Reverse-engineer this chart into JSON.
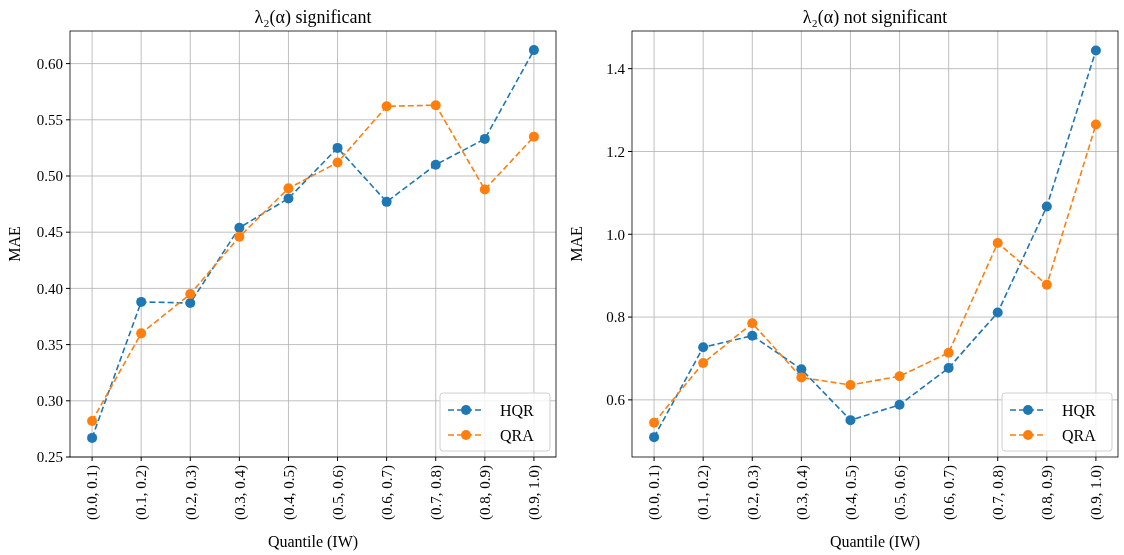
{
  "chart_data": [
    {
      "type": "line",
      "title": "λ₂(α) significant",
      "xlabel": "Quantile (IW)",
      "ylabel": "MAE",
      "categories": [
        "(0.0, 0.1)",
        "(0.1, 0.2)",
        "(0.2, 0.3)",
        "(0.3, 0.4)",
        "(0.4, 0.5)",
        "(0.5, 0.6)",
        "(0.6, 0.7)",
        "(0.7, 0.8)",
        "(0.8, 0.9)",
        "(0.9, 1.0)"
      ],
      "series": [
        {
          "name": "HQR",
          "color": "#1f77b4",
          "values": [
            0.267,
            0.388,
            0.387,
            0.454,
            0.48,
            0.525,
            0.477,
            0.51,
            0.533,
            0.612
          ]
        },
        {
          "name": "QRA",
          "color": "#ff7f0e",
          "values": [
            0.282,
            0.36,
            0.395,
            0.446,
            0.489,
            0.512,
            0.562,
            0.563,
            0.488,
            0.535
          ]
        }
      ],
      "ylim": [
        0.25,
        0.629
      ],
      "yticks": [
        {
          "value": 0.25,
          "label": "0.25"
        },
        {
          "value": 0.3,
          "label": "0.30"
        },
        {
          "value": 0.35,
          "label": "0.35"
        },
        {
          "value": 0.4,
          "label": "0.40"
        },
        {
          "value": 0.45,
          "label": "0.45"
        },
        {
          "value": 0.5,
          "label": "0.50"
        },
        {
          "value": 0.55,
          "label": "0.55"
        },
        {
          "value": 0.6,
          "label": "0.60"
        }
      ],
      "grid": true,
      "legend": "bottom right",
      "marker": "circle",
      "line_style": "dashed"
    },
    {
      "type": "line",
      "title": "λ₂(α) not significant",
      "xlabel": "Quantile (IW)",
      "ylabel": "MAE",
      "categories": [
        "(0.0, 0.1)",
        "(0.1, 0.2)",
        "(0.2, 0.3)",
        "(0.3, 0.4)",
        "(0.4, 0.5)",
        "(0.5, 0.6)",
        "(0.6, 0.7)",
        "(0.7, 0.8)",
        "(0.8, 0.9)",
        "(0.9, 1.0)"
      ],
      "series": [
        {
          "name": "HQR",
          "color": "#1f77b4",
          "values": [
            0.51,
            0.727,
            0.755,
            0.674,
            0.551,
            0.588,
            0.677,
            0.811,
            1.067,
            1.444
          ]
        },
        {
          "name": "QRA",
          "color": "#ff7f0e",
          "values": [
            0.545,
            0.689,
            0.785,
            0.654,
            0.636,
            0.657,
            0.714,
            0.979,
            0.878,
            1.265
          ]
        }
      ],
      "ylim": [
        0.462,
        1.491
      ],
      "yticks": [
        {
          "value": 0.6,
          "label": "0.6"
        },
        {
          "value": 0.8,
          "label": "0.8"
        },
        {
          "value": 1.0,
          "label": "1.0"
        },
        {
          "value": 1.2,
          "label": "1.2"
        },
        {
          "value": 1.4,
          "label": "1.4"
        }
      ],
      "grid": true,
      "legend": "bottom right",
      "marker": "circle",
      "line_style": "dashed"
    }
  ]
}
